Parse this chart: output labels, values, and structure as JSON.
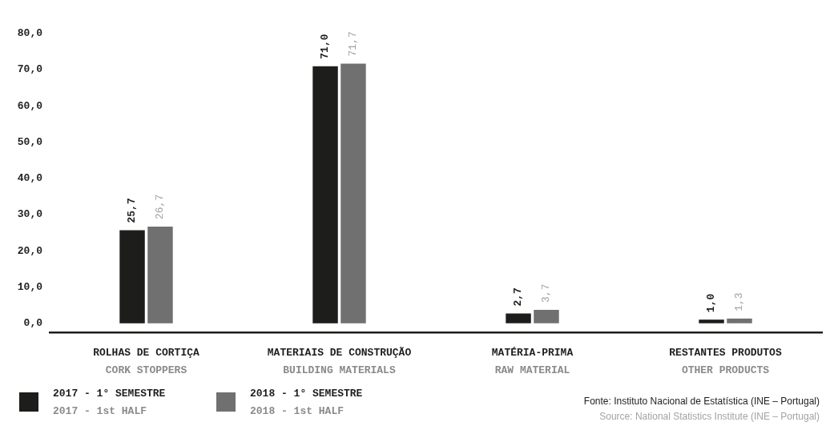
{
  "chart_data": {
    "type": "bar",
    "categories": [
      "ROLHAS DE CORTIÇA\nCORK STOPPERS",
      "MATERIAIS DE CONSTRUÇÃO\nBUILDING MATERIALS",
      "MATÉRIA-PRIMA\nRAW MATERIAL",
      "RESTANTES PRODUTOS\nOTHER PRODUCTS"
    ],
    "series": [
      {
        "name": "2017 - 1° SEMESTRE\n2017 - 1st HALF",
        "color": "#1d1d1b",
        "values": [
          25.7,
          71.0,
          2.7,
          1.0
        ],
        "value_labels": [
          "25,7",
          "71,0",
          "2,7",
          "1,0"
        ]
      },
      {
        "name": "2018 - 1° SEMESTRE\n2018 - 1st HALF",
        "color": "#707070",
        "values": [
          26.7,
          71.7,
          3.7,
          1.3
        ],
        "value_labels": [
          "26,7",
          "71,7",
          "3,7",
          "1,3"
        ]
      }
    ],
    "ylim": [
      -2.5,
      80
    ],
    "yticks": [
      {
        "value": 0,
        "label": "0,0"
      },
      {
        "value": 10,
        "label": "10,0"
      },
      {
        "value": 20,
        "label": "20,0"
      },
      {
        "value": 30,
        "label": "30,0"
      },
      {
        "value": 40,
        "label": "40,0"
      },
      {
        "value": 50,
        "label": "50,0"
      },
      {
        "value": 60,
        "label": "60,0"
      },
      {
        "value": 70,
        "label": "70,0"
      },
      {
        "value": 80,
        "label": "80,0"
      }
    ],
    "grid": false,
    "legend": "bottom left",
    "annotations": [
      "Fonte: Instituto Nacional de Estatística (INE – Portugal)",
      "Source: National Statistics Institute (INE – Portugal)"
    ]
  }
}
